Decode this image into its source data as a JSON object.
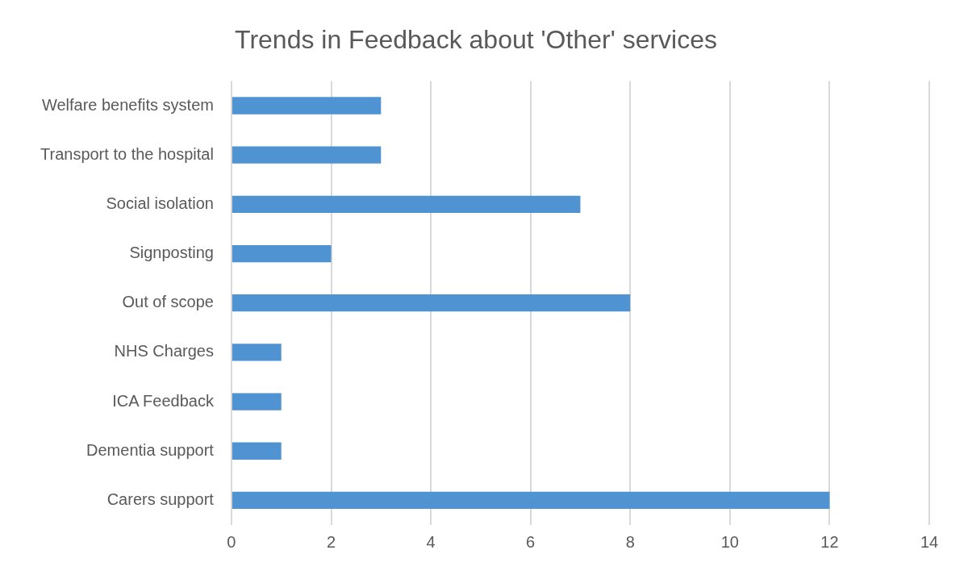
{
  "chart_data": {
    "type": "bar",
    "orientation": "horizontal",
    "title": "Trends in Feedback about 'Other' services",
    "categories": [
      "Welfare benefits system",
      "Transport to the hospital",
      "Social isolation",
      "Signposting",
      "Out of scope",
      "NHS Charges",
      "ICA Feedback",
      "Dementia support",
      "Carers support"
    ],
    "values": [
      3,
      3,
      7,
      2,
      8,
      1,
      1,
      1,
      12
    ],
    "color": "#5093d2",
    "xlim": [
      0,
      14
    ],
    "xticks": [
      0,
      2,
      4,
      6,
      8,
      10,
      12,
      14
    ],
    "grid": "x",
    "legend": false
  }
}
